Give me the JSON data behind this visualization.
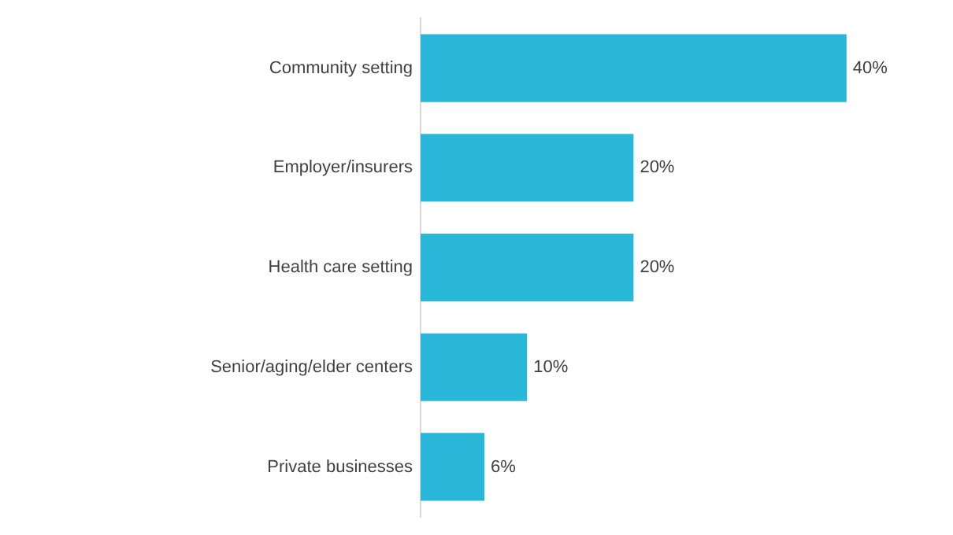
{
  "chart_data": {
    "type": "bar",
    "orientation": "horizontal",
    "categories": [
      "Community setting",
      "Employer/insurers",
      "Health care setting",
      "Senior/aging/elder centers",
      "Private businesses"
    ],
    "values": [
      40,
      20,
      20,
      10,
      6
    ],
    "color": "#29b8d9",
    "value_labels": [
      "40%",
      "20%",
      "20%",
      "10%",
      "6%"
    ],
    "grid": false,
    "legend": false
  }
}
